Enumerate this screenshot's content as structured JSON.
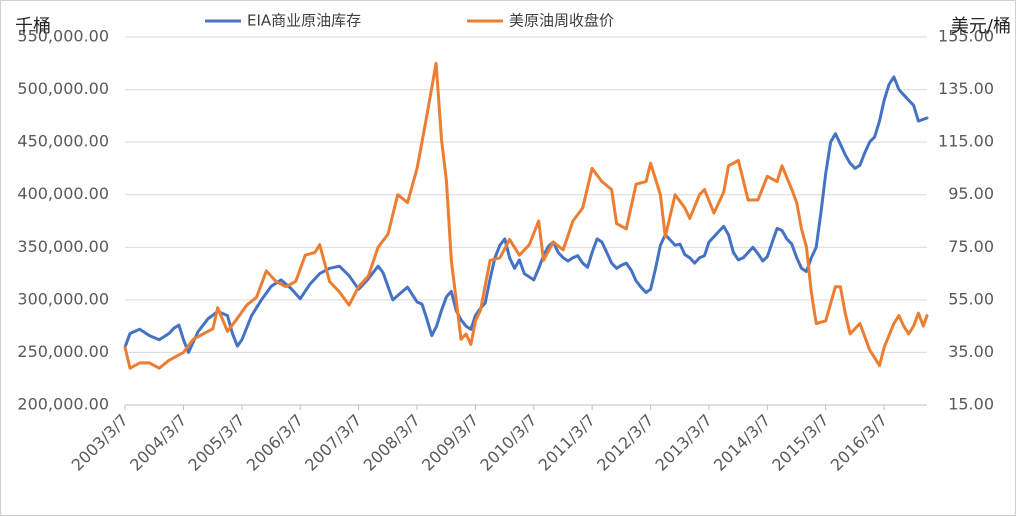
{
  "chart_data": {
    "type": "line",
    "title": "",
    "left_axis": {
      "unit_label": "千桶",
      "ylim": [
        200000,
        550000
      ],
      "ticks": [
        "200,000.00",
        "250,000.00",
        "300,000.00",
        "350,000.00",
        "400,000.00",
        "450,000.00",
        "500,000.00",
        "550,000.00"
      ]
    },
    "right_axis": {
      "unit_label": "美元/桶",
      "ylim": [
        15,
        155
      ],
      "ticks": [
        "15.00",
        "35.00",
        "55.00",
        "75.00",
        "95.00",
        "115.00",
        "135.00",
        "155.00"
      ]
    },
    "x_axis": {
      "range": [
        "2003/3/7",
        "2016/11/30"
      ],
      "tick_labels": [
        "2003/3/7",
        "2004/3/7",
        "2005/3/7",
        "2006/3/7",
        "2007/3/7",
        "2008/3/7",
        "2009/3/7",
        "2010/3/7",
        "2011/3/7",
        "2012/3/7",
        "2013/3/7",
        "2014/3/7",
        "2015/3/7",
        "2016/3/7"
      ]
    },
    "grid": "horizontal",
    "legend_position": "top",
    "series": [
      {
        "name": "EIA商业原油库存",
        "axis": "left",
        "color": "#4472C4",
        "points": [
          [
            "2003/3/7",
            255000
          ],
          [
            "2003/4/7",
            268000
          ],
          [
            "2003/6/7",
            272000
          ],
          [
            "2003/8/7",
            266000
          ],
          [
            "2003/10/7",
            262000
          ],
          [
            "2003/12/7",
            268000
          ],
          [
            "2004/1/7",
            273000
          ],
          [
            "2004/2/7",
            276000
          ],
          [
            "2004/3/7",
            262000
          ],
          [
            "2004/4/7",
            250000
          ],
          [
            "2004/6/7",
            270000
          ],
          [
            "2004/8/7",
            282000
          ],
          [
            "2004/10/7",
            289000
          ],
          [
            "2004/12/7",
            285000
          ],
          [
            "2005/1/7",
            268000
          ],
          [
            "2005/2/7",
            256000
          ],
          [
            "2005/3/7",
            262000
          ],
          [
            "2005/5/7",
            285000
          ],
          [
            "2005/7/7",
            300000
          ],
          [
            "2005/9/7",
            313000
          ],
          [
            "2005/11/7",
            319000
          ],
          [
            "2006/1/7",
            311000
          ],
          [
            "2006/3/7",
            301000
          ],
          [
            "2006/5/7",
            315000
          ],
          [
            "2006/7/7",
            325000
          ],
          [
            "2006/9/7",
            330000
          ],
          [
            "2006/11/7",
            332000
          ],
          [
            "2007/1/7",
            323000
          ],
          [
            "2007/3/7",
            310000
          ],
          [
            "2007/5/7",
            320000
          ],
          [
            "2007/7/7",
            332000
          ],
          [
            "2007/8/7",
            326000
          ],
          [
            "2007/10/7",
            300000
          ],
          [
            "2007/12/7",
            308000
          ],
          [
            "2008/1/7",
            312000
          ],
          [
            "2008/3/7",
            298000
          ],
          [
            "2008/4/7",
            296000
          ],
          [
            "2008/5/7",
            282000
          ],
          [
            "2008/6/7",
            266000
          ],
          [
            "2008/7/7",
            275000
          ],
          [
            "2008/8/7",
            290000
          ],
          [
            "2008/9/7",
            303000
          ],
          [
            "2008/10/7",
            308000
          ],
          [
            "2008/11/7",
            290000
          ],
          [
            "2008/12/7",
            281000
          ],
          [
            "2009/1/7",
            275000
          ],
          [
            "2009/2/7",
            272000
          ],
          [
            "2009/3/7",
            285000
          ],
          [
            "2009/4/7",
            292000
          ],
          [
            "2009/5/7",
            297000
          ],
          [
            "2009/6/7",
            320000
          ],
          [
            "2009/7/7",
            340000
          ],
          [
            "2009/8/7",
            352000
          ],
          [
            "2009/9/7",
            358000
          ],
          [
            "2009/10/7",
            340000
          ],
          [
            "2009/11/7",
            330000
          ],
          [
            "2009/12/7",
            338000
          ],
          [
            "2010/1/7",
            325000
          ],
          [
            "2010/3/7",
            319000
          ],
          [
            "2010/4/7",
            330000
          ],
          [
            "2010/5/7",
            342000
          ],
          [
            "2010/6/7",
            351000
          ],
          [
            "2010/7/7",
            355000
          ],
          [
            "2010/8/7",
            345000
          ],
          [
            "2010/9/7",
            340000
          ],
          [
            "2010/10/7",
            337000
          ],
          [
            "2010/11/7",
            340000
          ],
          [
            "2010/12/7",
            342000
          ],
          [
            "2011/1/7",
            335000
          ],
          [
            "2011/2/7",
            331000
          ],
          [
            "2011/3/7",
            345000
          ],
          [
            "2011/4/7",
            358000
          ],
          [
            "2011/5/7",
            355000
          ],
          [
            "2011/6/7",
            345000
          ],
          [
            "2011/7/7",
            335000
          ],
          [
            "2011/8/7",
            330000
          ],
          [
            "2011/9/7",
            333000
          ],
          [
            "2011/10/7",
            335000
          ],
          [
            "2011/11/7",
            328000
          ],
          [
            "2011/12/7",
            318000
          ],
          [
            "2012/1/7",
            312000
          ],
          [
            "2012/2/7",
            307000
          ],
          [
            "2012/3/7",
            310000
          ],
          [
            "2012/4/7",
            330000
          ],
          [
            "2012/5/7",
            352000
          ],
          [
            "2012/6/7",
            362000
          ],
          [
            "2012/7/7",
            357000
          ],
          [
            "2012/8/7",
            352000
          ],
          [
            "2012/9/7",
            353000
          ],
          [
            "2012/10/7",
            343000
          ],
          [
            "2012/11/7",
            340000
          ],
          [
            "2012/12/7",
            335000
          ],
          [
            "2013/1/7",
            340000
          ],
          [
            "2013/2/7",
            342000
          ],
          [
            "2013/3/7",
            355000
          ],
          [
            "2013/4/7",
            360000
          ],
          [
            "2013/5/7",
            365000
          ],
          [
            "2013/6/7",
            370000
          ],
          [
            "2013/7/7",
            362000
          ],
          [
            "2013/8/7",
            345000
          ],
          [
            "2013/9/7",
            338000
          ],
          [
            "2013/10/7",
            340000
          ],
          [
            "2013/11/7",
            345000
          ],
          [
            "2013/12/7",
            350000
          ],
          [
            "2014/1/7",
            344000
          ],
          [
            "2014/2/7",
            337000
          ],
          [
            "2014/3/7",
            341000
          ],
          [
            "2014/4/7",
            355000
          ],
          [
            "2014/5/7",
            368000
          ],
          [
            "2014/6/7",
            366000
          ],
          [
            "2014/7/7",
            358000
          ],
          [
            "2014/8/7",
            353000
          ],
          [
            "2014/9/7",
            340000
          ],
          [
            "2014/10/7",
            330000
          ],
          [
            "2014/11/7",
            327000
          ],
          [
            "2014/12/7",
            340000
          ],
          [
            "2015/1/7",
            350000
          ],
          [
            "2015/2/7",
            385000
          ],
          [
            "2015/3/7",
            420000
          ],
          [
            "2015/4/7",
            450000
          ],
          [
            "2015/5/7",
            458000
          ],
          [
            "2015/6/7",
            448000
          ],
          [
            "2015/7/7",
            438000
          ],
          [
            "2015/8/7",
            430000
          ],
          [
            "2015/9/7",
            425000
          ],
          [
            "2015/10/7",
            428000
          ],
          [
            "2015/11/7",
            440000
          ],
          [
            "2015/12/7",
            450000
          ],
          [
            "2016/1/7",
            455000
          ],
          [
            "2016/2/7",
            470000
          ],
          [
            "2016/3/7",
            490000
          ],
          [
            "2016/4/7",
            505000
          ],
          [
            "2016/5/7",
            512000
          ],
          [
            "2016/6/7",
            500000
          ],
          [
            "2016/7/7",
            495000
          ],
          [
            "2016/8/7",
            490000
          ],
          [
            "2016/9/7",
            485000
          ],
          [
            "2016/10/7",
            470000
          ],
          [
            "2016/11/30",
            473000
          ]
        ]
      },
      {
        "name": "美原油周收盘价",
        "axis": "right",
        "color": "#ED7D31",
        "points": [
          [
            "2003/3/7",
            37
          ],
          [
            "2003/4/7",
            29
          ],
          [
            "2003/6/7",
            31
          ],
          [
            "2003/8/7",
            31
          ],
          [
            "2003/10/7",
            29
          ],
          [
            "2003/12/7",
            32
          ],
          [
            "2004/3/7",
            35
          ],
          [
            "2004/5/7",
            40
          ],
          [
            "2004/7/7",
            42
          ],
          [
            "2004/9/7",
            44
          ],
          [
            "2004/10/7",
            52
          ],
          [
            "2004/12/7",
            43
          ],
          [
            "2005/2/7",
            48
          ],
          [
            "2005/4/7",
            53
          ],
          [
            "2005/6/7",
            56
          ],
          [
            "2005/8/7",
            66
          ],
          [
            "2005/10/7",
            62
          ],
          [
            "2005/12/7",
            60
          ],
          [
            "2006/2/7",
            62
          ],
          [
            "2006/4/7",
            72
          ],
          [
            "2006/6/7",
            73
          ],
          [
            "2006/7/7",
            76
          ],
          [
            "2006/9/7",
            62
          ],
          [
            "2006/11/7",
            58
          ],
          [
            "2007/1/7",
            53
          ],
          [
            "2007/3/7",
            60
          ],
          [
            "2007/5/7",
            64
          ],
          [
            "2007/7/7",
            75
          ],
          [
            "2007/9/7",
            80
          ],
          [
            "2007/11/7",
            95
          ],
          [
            "2008/1/7",
            92
          ],
          [
            "2008/3/7",
            105
          ],
          [
            "2008/5/7",
            125
          ],
          [
            "2008/7/4",
            145
          ],
          [
            "2008/8/7",
            116
          ],
          [
            "2008/9/7",
            100
          ],
          [
            "2008/10/7",
            70
          ],
          [
            "2008/11/7",
            55
          ],
          [
            "2008/12/7",
            40
          ],
          [
            "2009/1/7",
            42
          ],
          [
            "2009/2/7",
            38
          ],
          [
            "2009/3/7",
            47
          ],
          [
            "2009/4/7",
            51
          ],
          [
            "2009/6/7",
            70
          ],
          [
            "2009/8/7",
            71
          ],
          [
            "2009/10/7",
            78
          ],
          [
            "2009/12/7",
            72
          ],
          [
            "2010/2/7",
            76
          ],
          [
            "2010/4/7",
            85
          ],
          [
            "2010/5/7",
            70
          ],
          [
            "2010/7/7",
            77
          ],
          [
            "2010/9/7",
            74
          ],
          [
            "2010/11/7",
            85
          ],
          [
            "2011/1/7",
            90
          ],
          [
            "2011/3/7",
            105
          ],
          [
            "2011/5/7",
            100
          ],
          [
            "2011/7/7",
            97
          ],
          [
            "2011/8/7",
            84
          ],
          [
            "2011/10/7",
            82
          ],
          [
            "2011/12/7",
            99
          ],
          [
            "2012/2/7",
            100
          ],
          [
            "2012/3/7",
            107
          ],
          [
            "2012/5/7",
            95
          ],
          [
            "2012/6/7",
            79
          ],
          [
            "2012/8/7",
            95
          ],
          [
            "2012/10/7",
            90
          ],
          [
            "2012/11/7",
            86
          ],
          [
            "2013/1/7",
            95
          ],
          [
            "2013/2/7",
            97
          ],
          [
            "2013/4/7",
            88
          ],
          [
            "2013/6/7",
            96
          ],
          [
            "2013/7/7",
            106
          ],
          [
            "2013/9/7",
            108
          ],
          [
            "2013/11/7",
            93
          ],
          [
            "2014/1/7",
            93
          ],
          [
            "2014/3/7",
            102
          ],
          [
            "2014/5/7",
            100
          ],
          [
            "2014/6/7",
            106
          ],
          [
            "2014/8/7",
            97
          ],
          [
            "2014/9/7",
            92
          ],
          [
            "2014/10/7",
            82
          ],
          [
            "2014/11/7",
            75
          ],
          [
            "2014/12/7",
            58
          ],
          [
            "2015/1/7",
            46
          ],
          [
            "2015/3/7",
            47
          ],
          [
            "2015/5/7",
            60
          ],
          [
            "2015/6/7",
            60
          ],
          [
            "2015/7/7",
            50
          ],
          [
            "2015/8/7",
            42
          ],
          [
            "2015/10/7",
            46
          ],
          [
            "2015/11/7",
            41
          ],
          [
            "2015/12/7",
            36
          ],
          [
            "2016/1/7",
            33
          ],
          [
            "2016/2/7",
            30
          ],
          [
            "2016/3/7",
            37
          ],
          [
            "2016/5/7",
            46
          ],
          [
            "2016/6/7",
            49
          ],
          [
            "2016/7/7",
            45
          ],
          [
            "2016/8/7",
            42
          ],
          [
            "2016/9/7",
            45
          ],
          [
            "2016/10/7",
            50
          ],
          [
            "2016/11/7",
            45
          ],
          [
            "2016/11/30",
            49
          ]
        ]
      }
    ]
  }
}
